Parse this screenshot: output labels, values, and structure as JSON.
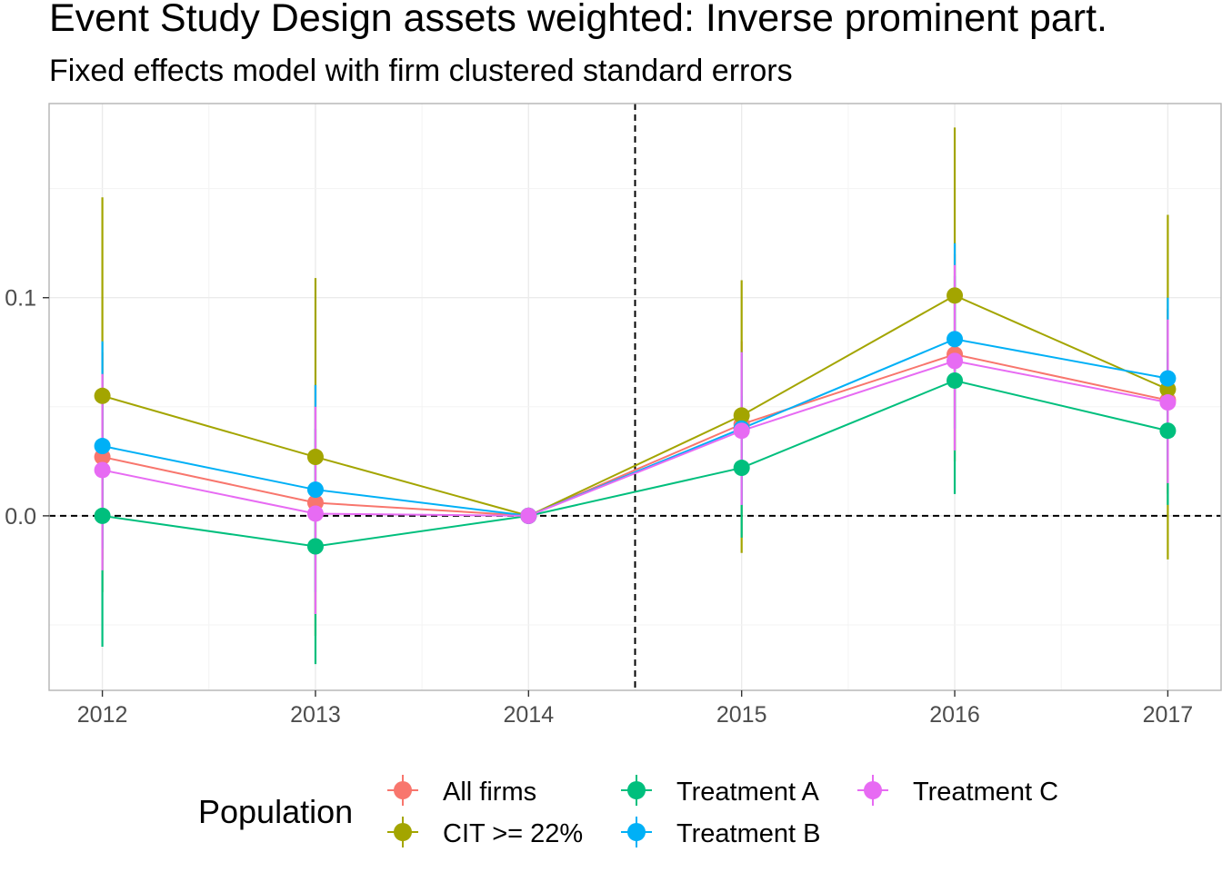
{
  "chart_data": {
    "type": "line",
    "title": "Event Study Design assets weighted: Inverse prominent part.",
    "subtitle": "Fixed effects model with firm clustered standard errors",
    "xlabel": "",
    "ylabel": "",
    "x": [
      2012,
      2013,
      2014,
      2015,
      2016,
      2017
    ],
    "x_tick_labels": [
      "2012",
      "2013",
      "2014",
      "2015",
      "2016",
      "2017"
    ],
    "y_tick_values": [
      0.0,
      0.1
    ],
    "y_tick_labels": [
      "0.0",
      "0.1"
    ],
    "xlim": [
      2011.75,
      2017.25
    ],
    "ylim": [
      -0.08,
      0.189
    ],
    "grid": true,
    "reference_lines": {
      "horizontal_y": 0.0,
      "vertical_x": 2014.5,
      "style": "dashed"
    },
    "legend": {
      "title": "Population",
      "position": "bottom"
    },
    "series": [
      {
        "name": "All firms",
        "color": "#F8766D",
        "values": [
          0.027,
          0.006,
          0.0,
          0.042,
          0.074,
          0.053
        ],
        "ci_low": [
          -0.02,
          -0.045,
          0.0,
          0.005,
          0.03,
          0.01
        ],
        "ci_high": [
          0.075,
          0.06,
          0.0,
          0.08,
          0.12,
          0.095
        ]
      },
      {
        "name": "CIT >= 22%",
        "color": "#A3A500",
        "values": [
          0.055,
          0.027,
          0.0,
          0.046,
          0.101,
          0.058
        ],
        "ci_low": [
          -0.035,
          -0.055,
          0.0,
          -0.017,
          0.025,
          -0.02
        ],
        "ci_high": [
          0.146,
          0.109,
          0.0,
          0.108,
          0.178,
          0.138
        ]
      },
      {
        "name": "Treatment A",
        "color": "#00BF7D",
        "values": [
          0.0,
          -0.014,
          0.0,
          0.022,
          0.062,
          0.039
        ],
        "ci_low": [
          -0.06,
          -0.068,
          0.0,
          -0.01,
          0.01,
          0.005
        ],
        "ci_high": [
          0.055,
          0.04,
          0.0,
          0.055,
          0.11,
          0.075
        ]
      },
      {
        "name": "Treatment B",
        "color": "#00B0F6",
        "values": [
          0.032,
          0.012,
          0.0,
          0.04,
          0.081,
          0.063
        ],
        "ci_low": [
          -0.015,
          -0.035,
          0.0,
          0.005,
          0.04,
          0.025
        ],
        "ci_high": [
          0.08,
          0.06,
          0.0,
          0.075,
          0.125,
          0.1
        ]
      },
      {
        "name": "Treatment C",
        "color": "#E76BF3",
        "values": [
          0.021,
          0.001,
          0.0,
          0.039,
          0.071,
          0.052
        ],
        "ci_low": [
          -0.025,
          -0.045,
          0.0,
          0.005,
          0.03,
          0.015
        ],
        "ci_high": [
          0.065,
          0.05,
          0.0,
          0.075,
          0.115,
          0.09
        ]
      }
    ]
  }
}
